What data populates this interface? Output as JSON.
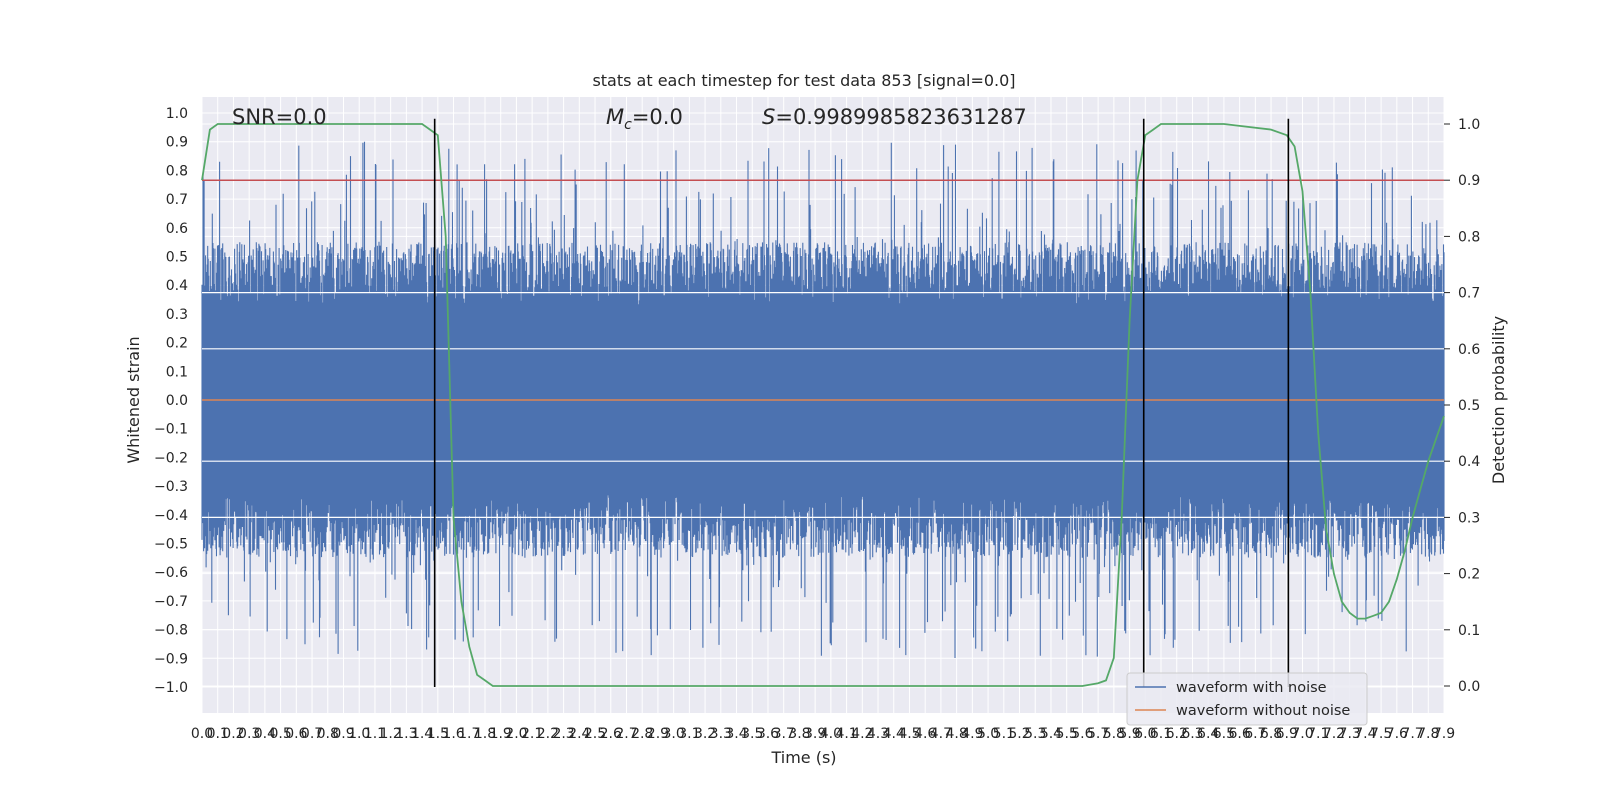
{
  "chart_data": {
    "type": "line",
    "title": "stats at each timestep for test data 853 [signal=0.0]",
    "xlabel": "Time (s)",
    "ylabel": "Whitened strain",
    "y2label": "Detection probability",
    "xlim": [
      0.0,
      7.9
    ],
    "ylim": [
      -1.1,
      1.05
    ],
    "y2lim": [
      -0.05,
      1.03
    ],
    "xticks": [
      "0.0",
      "0.1",
      "0.2",
      "0.3",
      "0.4",
      "0.5",
      "0.6",
      "0.7",
      "0.8",
      "0.9",
      "1.0",
      "1.1",
      "1.2",
      "1.3",
      "1.4",
      "1.5",
      "1.6",
      "1.7",
      "1.8",
      "1.9",
      "2.0",
      "2.1",
      "2.2",
      "2.3",
      "2.4",
      "2.5",
      "2.6",
      "2.7",
      "2.8",
      "2.9",
      "3.0",
      "3.1",
      "3.2",
      "3.3",
      "3.4",
      "3.5",
      "3.6",
      "3.7",
      "3.8",
      "3.9",
      "4.0",
      "4.1",
      "4.2",
      "4.3",
      "4.4",
      "4.5",
      "4.6",
      "4.7",
      "4.8",
      "4.9",
      "5.0",
      "5.1",
      "5.2",
      "5.3",
      "5.4",
      "5.5",
      "5.6",
      "5.7",
      "5.8",
      "5.9",
      "6.0",
      "6.1",
      "6.2",
      "6.3",
      "6.4",
      "6.5",
      "6.6",
      "6.7",
      "6.8",
      "6.9",
      "7.0",
      "7.1",
      "7.2",
      "7.3",
      "7.4",
      "7.5",
      "7.6",
      "7.7",
      "7.8",
      "7.9"
    ],
    "yticks": [
      "1.0",
      "0.9",
      "0.8",
      "0.7",
      "0.6",
      "0.5",
      "0.4",
      "0.3",
      "0.2",
      "0.1",
      "0.0",
      "−0.1",
      "−0.2",
      "−0.3",
      "−0.4",
      "−0.5",
      "−0.6",
      "−0.7",
      "−0.8",
      "−0.9",
      "−1.0"
    ],
    "y2ticks": [
      "1.0",
      "0.9",
      "0.8",
      "0.7",
      "0.6",
      "0.5",
      "0.4",
      "0.3",
      "0.2",
      "0.1",
      "0.0"
    ],
    "annotations": {
      "snr": "SNR=0.0",
      "mc_symbol": "M",
      "mc_sub": "c",
      "mc_value": "=0.0",
      "s_symbol": "S",
      "s_value": "=0.9989985823631287"
    },
    "series": [
      {
        "name": "waveform with noise",
        "color": "#4c72b0",
        "note_envelope": "dense noise roughly within ±0.55 with spikes to ±0.95"
      },
      {
        "name": "waveform without noise",
        "color": "#dd8452",
        "values_constant": 0.0
      },
      {
        "color": "#55a868",
        "axis": "right",
        "x": [
          0.0,
          0.05,
          0.1,
          0.2,
          0.4,
          0.8,
          1.2,
          1.4,
          1.45,
          1.5,
          1.55,
          1.6,
          1.65,
          1.7,
          1.75,
          1.8,
          1.85,
          1.9,
          2.0,
          2.5,
          3.0,
          4.0,
          5.0,
          5.6,
          5.7,
          5.75,
          5.8,
          5.85,
          5.9,
          5.95,
          6.0,
          6.05,
          6.1,
          6.2,
          6.5,
          6.8,
          6.9,
          6.95,
          7.0,
          7.05,
          7.1,
          7.15,
          7.2,
          7.25,
          7.3,
          7.35,
          7.4,
          7.45,
          7.5,
          7.55,
          7.6,
          7.65,
          7.7,
          7.75,
          7.8,
          7.85,
          7.9
        ],
        "values": [
          0.9,
          0.99,
          1.0,
          1.0,
          1.0,
          1.0,
          1.0,
          1.0,
          0.99,
          0.98,
          0.8,
          0.3,
          0.15,
          0.07,
          0.02,
          0.01,
          0.0,
          0.0,
          0.0,
          0.0,
          0.0,
          0.0,
          0.0,
          0.0,
          0.005,
          0.01,
          0.05,
          0.3,
          0.65,
          0.9,
          0.98,
          0.99,
          1.0,
          1.0,
          1.0,
          0.99,
          0.98,
          0.96,
          0.88,
          0.7,
          0.45,
          0.28,
          0.2,
          0.15,
          0.13,
          0.12,
          0.12,
          0.125,
          0.13,
          0.15,
          0.19,
          0.24,
          0.3,
          0.35,
          0.4,
          0.44,
          0.48
        ]
      }
    ],
    "hlines": [
      {
        "axis": "right",
        "y": 0.9,
        "color": "#c44e52"
      }
    ],
    "vlines": {
      "x": [
        1.48,
        5.99,
        6.91
      ],
      "ymin": -1.0,
      "ymax": 0.98,
      "color": "#000000"
    },
    "legend": {
      "placement": "lower-right",
      "entries": [
        "waveform with noise",
        "waveform without noise"
      ]
    },
    "grid": true,
    "style": {
      "background": "#eaeaf2",
      "grid_color": "#ffffff",
      "fig_background": "#ffffff"
    }
  }
}
